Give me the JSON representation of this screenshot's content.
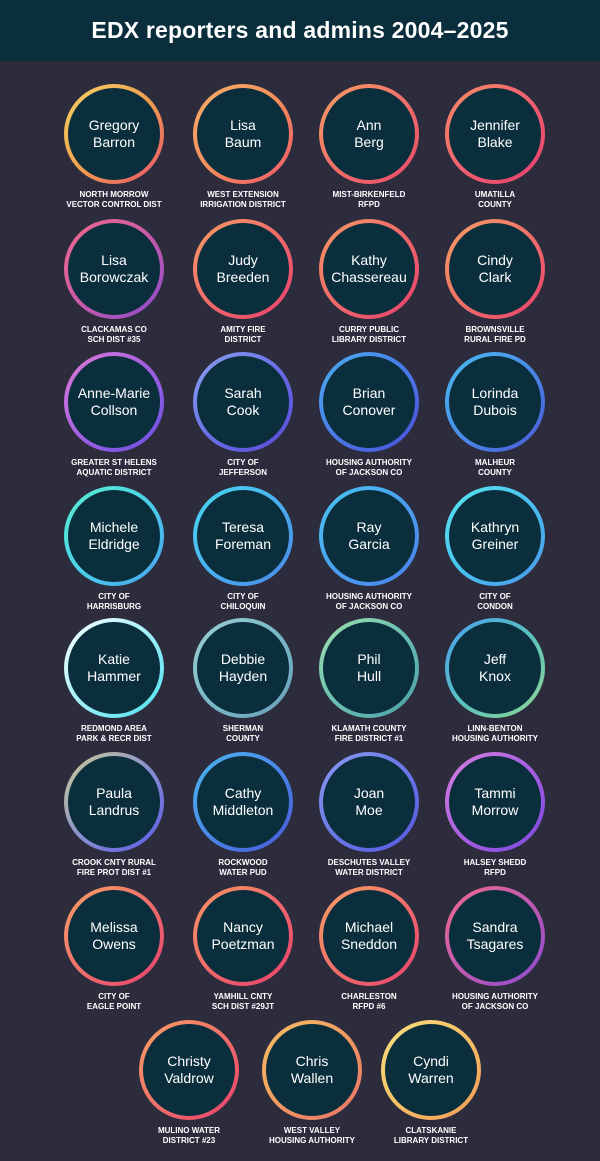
{
  "header": {
    "title": "EDX reporters and admins 2004–2025"
  },
  "people": [
    {
      "first": "Gregory",
      "last": "Barron",
      "org1": "NORTH MORROW",
      "org2": "VECTOR CONTROL DIST",
      "grad": [
        "#f6d365",
        "#f0a050",
        "#e8506a"
      ]
    },
    {
      "first": "Lisa",
      "last": "Baum",
      "org1": "WEST EXTENSION",
      "org2": "IRRIGATION DISTRICT",
      "grad": [
        "#f7b26a",
        "#f48c5a",
        "#f05a6a"
      ]
    },
    {
      "first": "Ann",
      "last": "Berg",
      "org1": "MIST-BIRKENFELD",
      "org2": "RFPD",
      "grad": [
        "#f7a064",
        "#f0706a",
        "#e94a6a"
      ]
    },
    {
      "first": "Jennifer",
      "last": "Blake",
      "org1": "UMATILLA",
      "org2": "COUNTY",
      "grad": [
        "#f79064",
        "#f06070",
        "#e8406e"
      ]
    },
    {
      "first": "Lisa",
      "last": "Borowczak",
      "org1": "CLACKAMAS CO",
      "org2": "SCH DIST #35",
      "grad": [
        "#f06a8a",
        "#c85aa8",
        "#8a4ad0"
      ]
    },
    {
      "first": "Judy",
      "last": "Breeden",
      "org1": "AMITY FIRE",
      "org2": "DISTRICT",
      "grad": [
        "#f7a064",
        "#f06a6a",
        "#e8406e"
      ]
    },
    {
      "first": "Kathy",
      "last": "Chassereau",
      "org1": "CURRY PUBLIC",
      "org2": "LIBRARY DISTRICT",
      "grad": [
        "#f79a64",
        "#f0686a",
        "#e8406e"
      ]
    },
    {
      "first": "Cindy",
      "last": "Clark",
      "org1": "BROWNSVILLE",
      "org2": "RURAL FIRE PD",
      "grad": [
        "#f7a064",
        "#f07068",
        "#e8406e"
      ]
    },
    {
      "first": "Anne-Marie",
      "last": "Collson",
      "org1": "GREATER ST HELENS",
      "org2": "AQUATIC DISTRICT",
      "grad": [
        "#e27ad8",
        "#a060e0",
        "#6a50e8"
      ]
    },
    {
      "first": "Sarah",
      "last": "Cook",
      "org1": "CITY OF",
      "org2": "JEFFERSON",
      "grad": [
        "#8aa0f0",
        "#6a70e8",
        "#5a48d8"
      ]
    },
    {
      "first": "Brian",
      "last": "Conover",
      "org1": "HOUSING AUTHORITY",
      "org2": "OF JACKSON CO",
      "grad": [
        "#4ab0f0",
        "#4a7ae8",
        "#4a50d8"
      ]
    },
    {
      "first": "Lorinda",
      "last": "Dubois",
      "org1": "MALHEUR",
      "org2": "COUNTY",
      "grad": [
        "#4ac0f0",
        "#4a8ae8",
        "#4a58d8"
      ]
    },
    {
      "first": "Michele",
      "last": "Eldridge",
      "org1": "CITY OF",
      "org2": "HARRISBURG",
      "grad": [
        "#5af0d0",
        "#4ad0e8",
        "#4aa0f0"
      ]
    },
    {
      "first": "Teresa",
      "last": "Foreman",
      "org1": "CITY OF",
      "org2": "CHILOQUIN",
      "grad": [
        "#4ad8f0",
        "#4ab0f0",
        "#4a88e8"
      ]
    },
    {
      "first": "Ray",
      "last": "Garcia",
      "org1": "HOUSING AUTHORITY",
      "org2": "OF JACKSON CO",
      "grad": [
        "#4ac8f0",
        "#4aa0f0",
        "#4a80e8"
      ]
    },
    {
      "first": "Kathryn",
      "last": "Greiner",
      "org1": "CITY OF",
      "org2": "CONDON",
      "grad": [
        "#5ae8f0",
        "#4ac0f0",
        "#4a98e8"
      ]
    },
    {
      "first": "Katie",
      "last": "Hammer",
      "org1": "REDMOND AREA",
      "org2": "PARK & RECR DIST",
      "grad": [
        "#ffffff",
        "#a0f0f8",
        "#4ae0f0"
      ]
    },
    {
      "first": "Debbie",
      "last": "Hayden",
      "org1": "SHERMAN",
      "org2": "COUNTY",
      "grad": [
        "#9ad0d0",
        "#7ab8c8",
        "#6aa0b8"
      ]
    },
    {
      "first": "Phil",
      "last": "Hull",
      "org1": "KLAMATH COUNTY",
      "org2": "FIRE DISTRICT #1",
      "grad": [
        "#a0e0b0",
        "#6ac0b0",
        "#4aa0a8"
      ]
    },
    {
      "first": "Jeff",
      "last": "Knox",
      "org1": "LINN-BENTON",
      "org2": "HOUSING AUTHORITY",
      "grad": [
        "#4aa0f0",
        "#5ac0c0",
        "#90d890"
      ]
    },
    {
      "first": "Paula",
      "last": "Landrus",
      "org1": "CROOK CNTY RURAL",
      "org2": "FIRE PROT DIST #1",
      "grad": [
        "#d0d090",
        "#8a90d0",
        "#5a58e8"
      ]
    },
    {
      "first": "Cathy",
      "last": "Middleton",
      "org1": "ROCKWOOD",
      "org2": "WATER PUD",
      "grad": [
        "#4ab8f0",
        "#4a88e8",
        "#4a58d8"
      ]
    },
    {
      "first": "Joan",
      "last": "Moe",
      "org1": "DESCHUTES VALLEY",
      "org2": "WATER DISTRICT",
      "grad": [
        "#8a9af0",
        "#6a78e8",
        "#5a58e0"
      ]
    },
    {
      "first": "Tammi",
      "last": "Morrow",
      "org1": "HALSEY SHEDD",
      "org2": "RFPD",
      "grad": [
        "#d880e0",
        "#a860e0",
        "#7a48e0"
      ]
    },
    {
      "first": "Melissa",
      "last": "Owens",
      "org1": "CITY OF",
      "org2": "EAGLE POINT",
      "grad": [
        "#f7a064",
        "#f0706a",
        "#e8406e"
      ]
    },
    {
      "first": "Nancy",
      "last": "Poetzman",
      "org1": "YAMHILL CNTY",
      "org2": "SCH DIST #29JT",
      "grad": [
        "#f79864",
        "#f0686a",
        "#e8406e"
      ]
    },
    {
      "first": "Michael",
      "last": "Sneddon",
      "org1": "CHARLESTON",
      "org2": "RFPD #6",
      "grad": [
        "#f7a064",
        "#f0706a",
        "#e8406e"
      ]
    },
    {
      "first": "Sandra",
      "last": "Tsagares",
      "org1": "HOUSING AUTHORITY",
      "org2": "OF JACKSON CO",
      "grad": [
        "#f06a8a",
        "#c05ab0",
        "#8a4ad0"
      ]
    },
    {
      "first": "Christy",
      "last": "Valdrow",
      "org1": "MULINO WATER",
      "org2": "DISTRICT #23",
      "grad": [
        "#f7a064",
        "#f0706a",
        "#e8406e"
      ]
    },
    {
      "first": "Chris",
      "last": "Wallen",
      "org1": "WEST VALLEY",
      "org2": "HOUSING AUTHORITY",
      "grad": [
        "#f7c064",
        "#f09a60",
        "#e8706a"
      ]
    },
    {
      "first": "Cyndi",
      "last": "Warren",
      "org1": "CLATSKANIE",
      "org2": "LIBRARY DISTRICT",
      "grad": [
        "#f7e080",
        "#f6c064",
        "#f09a5a"
      ]
    }
  ]
}
